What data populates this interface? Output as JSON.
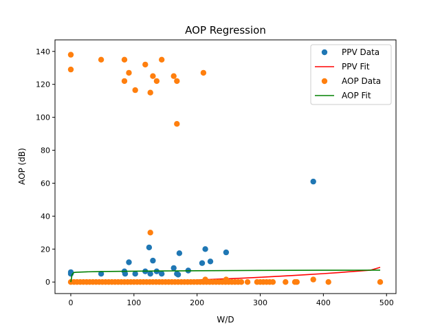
{
  "chart_data": {
    "type": "scatter",
    "title": "AOP Regression",
    "xlabel": "W/D",
    "ylabel": "AOP (dB)",
    "xlim": [
      -25,
      515
    ],
    "ylim": [
      -7,
      147
    ],
    "xticks": [
      0,
      100,
      200,
      300,
      400,
      500
    ],
    "yticks": [
      0,
      20,
      40,
      60,
      80,
      100,
      120,
      140
    ],
    "legend": "top-right",
    "grid": false,
    "series": [
      {
        "name": "PPV Data",
        "kind": "points",
        "color": "#1f77b4",
        "x": [
          0,
          0,
          48,
          85,
          86,
          92,
          102,
          118,
          124,
          126,
          130,
          136,
          144,
          163,
          168,
          170,
          172,
          186,
          208,
          213,
          221,
          246,
          384
        ],
        "y": [
          5,
          6,
          5,
          6.5,
          5,
          12,
          5,
          6.5,
          21,
          5,
          13,
          6.5,
          5,
          8.5,
          5,
          4.5,
          17.5,
          7,
          11.5,
          20,
          12.5,
          18,
          61
        ]
      },
      {
        "name": "PPV Fit",
        "kind": "line",
        "color": "#ff0000",
        "x": [
          0,
          25,
          50,
          75,
          100,
          125,
          150,
          175,
          200,
          225,
          250,
          275,
          300,
          325,
          350,
          375,
          400,
          425,
          450,
          475,
          490
        ],
        "y": [
          0,
          0.02,
          0.08,
          0.18,
          0.32,
          0.5,
          0.72,
          0.98,
          1.28,
          1.62,
          2.0,
          2.42,
          2.88,
          3.38,
          3.92,
          4.5,
          5.12,
          5.78,
          6.48,
          7.22,
          8.9
        ]
      },
      {
        "name": "AOP Data",
        "kind": "points",
        "color": "#ff7f0e",
        "x": [
          0,
          0,
          48,
          85,
          85,
          92,
          102,
          118,
          126,
          126,
          130,
          136,
          144,
          163,
          168,
          168,
          210,
          0,
          5,
          10,
          15,
          20,
          25,
          30,
          35,
          40,
          45,
          50,
          55,
          60,
          65,
          70,
          75,
          80,
          85,
          90,
          95,
          100,
          105,
          110,
          115,
          120,
          125,
          130,
          135,
          140,
          145,
          150,
          155,
          160,
          165,
          170,
          175,
          180,
          185,
          190,
          195,
          200,
          205,
          210,
          215,
          220,
          225,
          230,
          235,
          240,
          245,
          250,
          255,
          260,
          265,
          270,
          280,
          295,
          300,
          305,
          310,
          315,
          320,
          340,
          355,
          358,
          384,
          408,
          490,
          213,
          246
        ],
        "y": [
          138,
          129,
          135,
          135,
          122,
          127,
          116.5,
          132,
          115,
          30,
          125,
          122,
          135,
          125,
          122,
          96,
          127,
          0,
          0,
          0,
          0,
          0,
          0,
          0,
          0,
          0,
          0,
          0,
          0,
          0,
          0,
          0,
          0,
          0,
          0,
          0,
          0,
          0,
          0,
          0,
          0,
          0,
          0,
          0,
          0,
          0,
          0,
          0,
          0,
          0,
          0,
          0,
          0,
          0,
          0,
          0,
          0,
          0,
          0,
          0,
          0,
          0,
          0,
          0,
          0,
          0,
          0,
          0,
          0,
          0,
          0,
          0,
          0,
          0,
          0,
          0,
          0,
          0,
          0,
          0,
          0,
          0,
          1.5,
          0,
          0,
          1.5,
          1.5
        ]
      },
      {
        "name": "AOP Fit",
        "kind": "line",
        "color": "#008000",
        "x": [
          0,
          2,
          5,
          10,
          25,
          50,
          75,
          100,
          150,
          200,
          250,
          300,
          350,
          400,
          450,
          490
        ],
        "y": [
          0,
          4.5,
          5.8,
          6.0,
          6.2,
          6.4,
          6.5,
          6.6,
          6.75,
          6.85,
          6.95,
          7.05,
          7.1,
          7.15,
          7.2,
          7.25
        ]
      }
    ]
  }
}
